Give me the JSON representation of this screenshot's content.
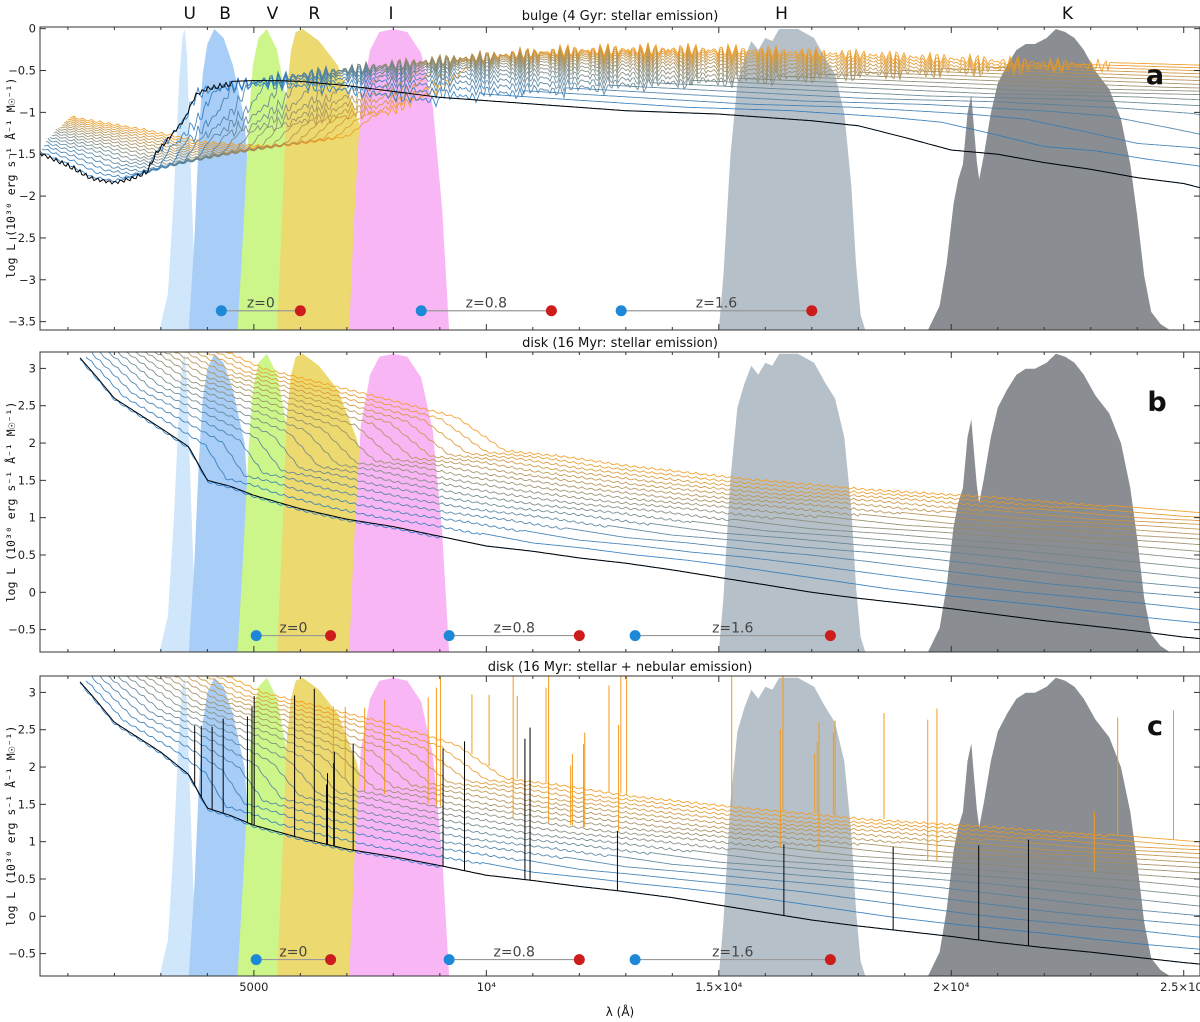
{
  "chart_data": {
    "type": "line",
    "xlabel": "λ (Å)",
    "xlim": [
      400,
      25350
    ],
    "x_ticks": [
      {
        "value": 5000,
        "label": "5000"
      },
      {
        "value": 10000,
        "label": "10⁴"
      },
      {
        "value": 15000,
        "label": "1.5×10⁴"
      },
      {
        "value": 20000,
        "label": "2×10⁴"
      },
      {
        "value": 25000,
        "label": "2.5×10⁴"
      }
    ],
    "x_minor_step": 1000,
    "colors": {
      "low_z": "#1f78c8",
      "high_z": "#f39a1c",
      "rest": "#000000",
      "z_start": "#1e88d8",
      "z_end": "#cc1c1c",
      "z_line": "#999999"
    },
    "filters": [
      {
        "name": "U",
        "label_x": 3620,
        "color": "#cfe6fb",
        "shape": [
          [
            2970,
            0
          ],
          [
            3150,
            0.12
          ],
          [
            3280,
            0.45
          ],
          [
            3390,
            0.82
          ],
          [
            3460,
            0.97
          ],
          [
            3510,
            1.0
          ],
          [
            3560,
            0.92
          ],
          [
            3640,
            0.55
          ],
          [
            3720,
            0.2
          ],
          [
            3820,
            0
          ]
        ]
      },
      {
        "name": "B",
        "label_x": 4380,
        "color": "#a8cdf6",
        "shape": [
          [
            3600,
            0
          ],
          [
            3720,
            0.3
          ],
          [
            3820,
            0.65
          ],
          [
            3900,
            0.85
          ],
          [
            4000,
            0.95
          ],
          [
            4150,
            1.0
          ],
          [
            4350,
            0.97
          ],
          [
            4550,
            0.88
          ],
          [
            4800,
            0.7
          ],
          [
            4950,
            0.35
          ],
          [
            5050,
            0
          ]
        ]
      },
      {
        "name": "V",
        "label_x": 5400,
        "color": "#ccf68a",
        "shape": [
          [
            4650,
            0
          ],
          [
            4780,
            0.35
          ],
          [
            4900,
            0.72
          ],
          [
            4980,
            0.88
          ],
          [
            5100,
            0.97
          ],
          [
            5280,
            1.0
          ],
          [
            5500,
            0.93
          ],
          [
            5750,
            0.72
          ],
          [
            5950,
            0.42
          ],
          [
            6100,
            0.18
          ],
          [
            6250,
            0
          ]
        ]
      },
      {
        "name": "R",
        "label_x": 6300,
        "color": "#ecd96f",
        "shape": [
          [
            5500,
            0
          ],
          [
            5620,
            0.42
          ],
          [
            5700,
            0.78
          ],
          [
            5800,
            0.93
          ],
          [
            5900,
            0.99
          ],
          [
            6050,
            1.0
          ],
          [
            6400,
            0.96
          ],
          [
            6800,
            0.88
          ],
          [
            7200,
            0.72
          ],
          [
            7600,
            0.5
          ],
          [
            7900,
            0.28
          ],
          [
            8200,
            0.08
          ],
          [
            8400,
            0
          ]
        ]
      },
      {
        "name": "I",
        "label_x": 7950,
        "color": "#f8b7f4",
        "shape": [
          [
            7050,
            0
          ],
          [
            7150,
            0.35
          ],
          [
            7300,
            0.76
          ],
          [
            7500,
            0.93
          ],
          [
            7700,
            0.99
          ],
          [
            8000,
            1.0
          ],
          [
            8300,
            0.99
          ],
          [
            8600,
            0.92
          ],
          [
            8850,
            0.74
          ],
          [
            9050,
            0.4
          ],
          [
            9200,
            0
          ]
        ]
      },
      {
        "name": "H",
        "label_x": 16350,
        "color": "#b6c0c8",
        "shape": [
          [
            15000,
            0
          ],
          [
            15100,
            0.18
          ],
          [
            15250,
            0.58
          ],
          [
            15400,
            0.82
          ],
          [
            15550,
            0.9
          ],
          [
            15700,
            0.96
          ],
          [
            15850,
            0.93
          ],
          [
            16000,
            0.97
          ],
          [
            16150,
            0.96
          ],
          [
            16300,
            1.0
          ],
          [
            16700,
            1.0
          ],
          [
            17050,
            0.97
          ],
          [
            17300,
            0.9
          ],
          [
            17500,
            0.85
          ],
          [
            17700,
            0.72
          ],
          [
            17850,
            0.48
          ],
          [
            17950,
            0.22
          ],
          [
            18050,
            0.05
          ],
          [
            18150,
            0
          ]
        ]
      },
      {
        "name": "K",
        "label_x": 22500,
        "color": "#8a8d91",
        "shape": [
          [
            19500,
            0
          ],
          [
            19750,
            0.08
          ],
          [
            19900,
            0.22
          ],
          [
            20050,
            0.42
          ],
          [
            20150,
            0.5
          ],
          [
            20250,
            0.55
          ],
          [
            20350,
            0.72
          ],
          [
            20430,
            0.78
          ],
          [
            20500,
            0.65
          ],
          [
            20550,
            0.56
          ],
          [
            20600,
            0.5
          ],
          [
            20700,
            0.58
          ],
          [
            20850,
            0.72
          ],
          [
            21000,
            0.82
          ],
          [
            21200,
            0.88
          ],
          [
            21400,
            0.93
          ],
          [
            21600,
            0.95
          ],
          [
            21800,
            0.95
          ],
          [
            22050,
            0.97
          ],
          [
            22250,
            1.0
          ],
          [
            22450,
            0.99
          ],
          [
            22650,
            0.97
          ],
          [
            22850,
            0.93
          ],
          [
            23100,
            0.86
          ],
          [
            23400,
            0.8
          ],
          [
            23650,
            0.7
          ],
          [
            23850,
            0.55
          ],
          [
            24000,
            0.38
          ],
          [
            24150,
            0.18
          ],
          [
            24300,
            0.06
          ],
          [
            24500,
            0.02
          ],
          [
            24700,
            0
          ]
        ]
      }
    ],
    "panels": [
      {
        "id": "a",
        "letter": "a",
        "title": "bulge (4 Gyr: stellar emission)",
        "ylabel": "log L (10³⁰ erg s⁻¹ Å⁻¹ M☉⁻¹)",
        "ylim": [
          -3.6,
          0.02
        ],
        "y_ticks": [
          0,
          -0.5,
          -1,
          -1.5,
          -2,
          -2.5,
          -3,
          -3.5
        ],
        "y_tick_labels": [
          "0",
          "−0.5",
          "−1",
          "−1.5",
          "−2",
          "−2.5",
          "−3",
          "−3.5"
        ],
        "filter_scale": 3.6,
        "n_redshifts": 17,
        "z_max": 1.6,
        "rest_spectrum": [
          [
            400,
            -1.45
          ],
          [
            1000,
            -1.6
          ],
          [
            1500,
            -1.75
          ],
          [
            2000,
            -1.8
          ],
          [
            2400,
            -1.75
          ],
          [
            2700,
            -1.68
          ],
          [
            2900,
            -1.45
          ],
          [
            3200,
            -1.25
          ],
          [
            3500,
            -1.05
          ],
          [
            3750,
            -0.75
          ],
          [
            4000,
            -0.68
          ],
          [
            4500,
            -0.63
          ],
          [
            5000,
            -0.62
          ],
          [
            5500,
            -0.62
          ],
          [
            6000,
            -0.63
          ],
          [
            7000,
            -0.68
          ],
          [
            8000,
            -0.75
          ],
          [
            9000,
            -0.82
          ],
          [
            10000,
            -0.86
          ],
          [
            11000,
            -0.9
          ],
          [
            12000,
            -0.94
          ],
          [
            13000,
            -0.98
          ],
          [
            14000,
            -1.0
          ],
          [
            15000,
            -1.02
          ],
          [
            16000,
            -1.06
          ],
          [
            17000,
            -1.1
          ],
          [
            18000,
            -1.16
          ],
          [
            19000,
            -1.3
          ],
          [
            20000,
            -1.45
          ],
          [
            21000,
            -1.5
          ],
          [
            22000,
            -1.6
          ],
          [
            23000,
            -1.68
          ],
          [
            24000,
            -1.78
          ],
          [
            25000,
            -1.85
          ],
          [
            25350,
            -1.9
          ]
        ],
        "z_ranges": [
          {
            "label": "z=0",
            "x_start": 4300,
            "x_end": 6000,
            "y": -3.37
          },
          {
            "label": "z=0.8",
            "x_start": 8600,
            "x_end": 11400,
            "y": -3.37
          },
          {
            "label": "z=1.6",
            "x_start": 12900,
            "x_end": 17000,
            "y": -3.37
          }
        ]
      },
      {
        "id": "b",
        "letter": "b",
        "title": "disk (16 Myr: stellar emission)",
        "ylabel": "log L (10³⁰ erg s⁻¹ Å⁻¹ M☉⁻¹)",
        "ylim": [
          -0.8,
          3.22
        ],
        "y_ticks": [
          3,
          2.5,
          2,
          1.5,
          1,
          0.5,
          0,
          -0.5
        ],
        "y_tick_labels": [
          "3",
          "2.5",
          "2",
          "1.5",
          "1",
          "0.5",
          "0",
          "−0.5"
        ],
        "filter_scale": 4.0,
        "n_redshifts": 17,
        "z_max": 1.6,
        "rest_spectrum": [
          [
            1250,
            3.15
          ],
          [
            1600,
            2.9
          ],
          [
            2000,
            2.6
          ],
          [
            2500,
            2.4
          ],
          [
            3000,
            2.2
          ],
          [
            3600,
            1.95
          ],
          [
            4000,
            1.5
          ],
          [
            4500,
            1.42
          ],
          [
            5000,
            1.3
          ],
          [
            6000,
            1.12
          ],
          [
            7000,
            0.98
          ],
          [
            8000,
            0.88
          ],
          [
            9000,
            0.75
          ],
          [
            10000,
            0.62
          ],
          [
            11000,
            0.55
          ],
          [
            12000,
            0.46
          ],
          [
            13000,
            0.39
          ],
          [
            14000,
            0.3
          ],
          [
            15000,
            0.2
          ],
          [
            16000,
            0.1
          ],
          [
            17000,
            0.0
          ],
          [
            18000,
            -0.08
          ],
          [
            19000,
            -0.15
          ],
          [
            20000,
            -0.22
          ],
          [
            21000,
            -0.3
          ],
          [
            22000,
            -0.38
          ],
          [
            23000,
            -0.45
          ],
          [
            24000,
            -0.52
          ],
          [
            25000,
            -0.6
          ],
          [
            25350,
            -0.62
          ]
        ],
        "z_ranges": [
          {
            "label": "z=0",
            "x_start": 5050,
            "x_end": 6650,
            "y": -0.58
          },
          {
            "label": "z=0.8",
            "x_start": 9200,
            "x_end": 12000,
            "y": -0.58
          },
          {
            "label": "z=1.6",
            "x_start": 13200,
            "x_end": 17400,
            "y": -0.58
          }
        ]
      },
      {
        "id": "c",
        "letter": "c",
        "title": "disk (16 Myr: stellar + nebular emission)",
        "ylabel": "log L (10³⁰ erg s⁻¹ Å⁻¹ M☉⁻¹)",
        "ylim": [
          -0.8,
          3.22
        ],
        "y_ticks": [
          3,
          2.5,
          2,
          1.5,
          1,
          0.5,
          0,
          -0.5
        ],
        "y_tick_labels": [
          "3",
          "2.5",
          "2",
          "1.5",
          "1",
          "0.5",
          "0",
          "−0.5"
        ],
        "filter_scale": 4.0,
        "n_redshifts": 17,
        "z_max": 1.6,
        "rest_spectrum": [
          [
            1250,
            3.15
          ],
          [
            1600,
            2.9
          ],
          [
            2000,
            2.6
          ],
          [
            2500,
            2.4
          ],
          [
            3000,
            2.2
          ],
          [
            3600,
            1.9
          ],
          [
            4000,
            1.45
          ],
          [
            4500,
            1.35
          ],
          [
            5000,
            1.22
          ],
          [
            6000,
            1.05
          ],
          [
            7000,
            0.9
          ],
          [
            8000,
            0.8
          ],
          [
            9000,
            0.68
          ],
          [
            10000,
            0.55
          ],
          [
            11000,
            0.48
          ],
          [
            12000,
            0.4
          ],
          [
            13000,
            0.33
          ],
          [
            14000,
            0.25
          ],
          [
            15000,
            0.15
          ],
          [
            16000,
            0.05
          ],
          [
            17000,
            -0.05
          ],
          [
            18000,
            -0.13
          ],
          [
            19000,
            -0.2
          ],
          [
            20000,
            -0.27
          ],
          [
            21000,
            -0.35
          ],
          [
            22000,
            -0.42
          ],
          [
            23000,
            -0.48
          ],
          [
            24000,
            -0.55
          ],
          [
            25000,
            -0.62
          ],
          [
            25350,
            -0.64
          ]
        ],
        "emission_lines": [
          3727,
          3869,
          4102,
          4340,
          4861,
          4959,
          5007,
          5876,
          6300,
          6563,
          6584,
          6717,
          6731,
          7136,
          9069,
          9531,
          10830,
          10940,
          12820,
          16400,
          18750,
          20590,
          21660
        ],
        "z_ranges": [
          {
            "label": "z=0",
            "x_start": 5050,
            "x_end": 6650,
            "y": -0.58
          },
          {
            "label": "z=0.8",
            "x_start": 9200,
            "x_end": 12000,
            "y": -0.58
          },
          {
            "label": "z=1.6",
            "x_start": 13200,
            "x_end": 17400,
            "y": -0.58
          }
        ]
      }
    ]
  }
}
